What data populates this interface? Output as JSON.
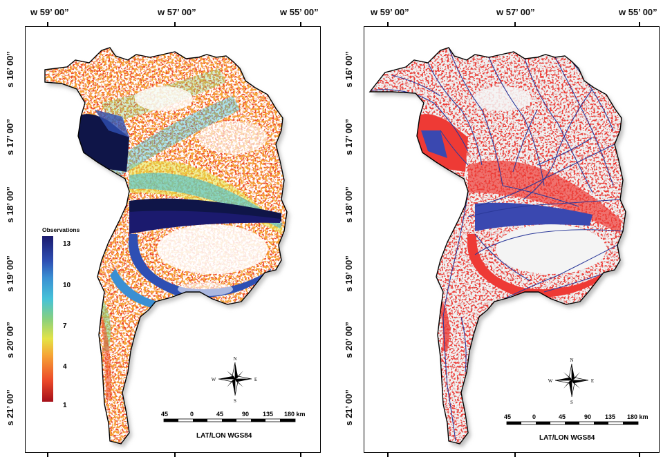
{
  "top_lon_labels": [
    "w 59’ 00”",
    "w 57’ 00”",
    "w 55’ 00”"
  ],
  "left_lat_labels": [
    "s 16’ 00”",
    "s 17’ 00”",
    "s 18’ 00”",
    "s 19’ 00”",
    "s 20’ 00”",
    "s 21’ 00”"
  ],
  "left_panel": {
    "legend_title": "Observations",
    "legend_values": [
      "13",
      "10",
      "7",
      "4",
      "1"
    ],
    "scale_numbers": [
      "45",
      "0",
      "45",
      "90",
      "135",
      "180 km"
    ],
    "datum": "LAT/LON WGS84",
    "compass": {
      "n": "N",
      "s": "S",
      "e": "E",
      "w": "W"
    }
  },
  "right_panel": {
    "scale_numbers": [
      "45",
      "0",
      "45",
      "90",
      "135",
      "180 km"
    ],
    "datum": "LAT/LON WGS84",
    "compass": {
      "n": "N",
      "s": "S",
      "e": "E",
      "w": "W"
    }
  },
  "colors": {
    "flood_red": "#ee3a35",
    "river_blue": "#2c3a9a",
    "deep_water": "#0f1548",
    "shadow_gray": "#bdbdbd",
    "scale_low": "#a5101a",
    "scale_high": "#1b1a6e"
  }
}
